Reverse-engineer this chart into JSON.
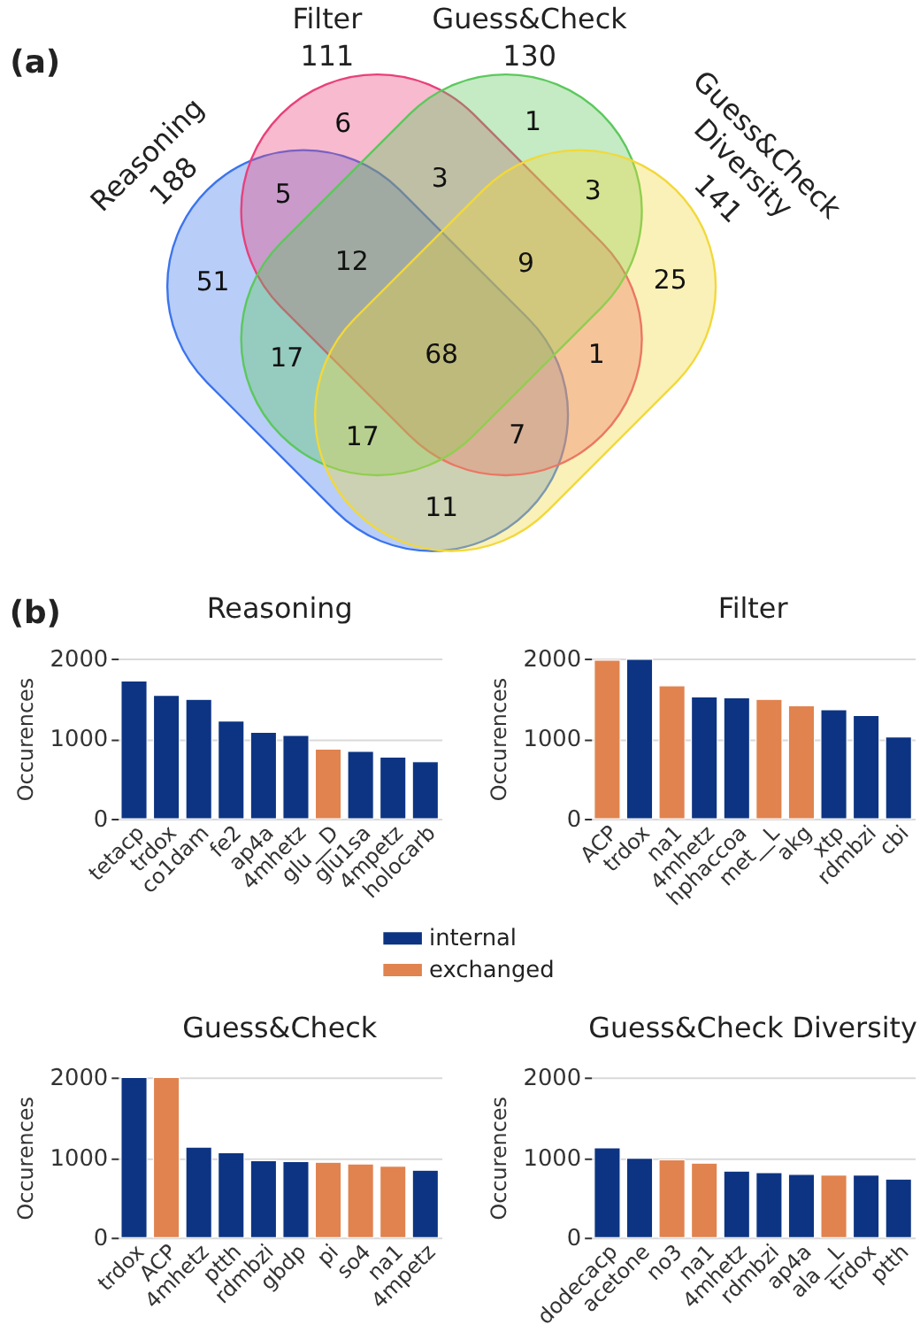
{
  "chart_data": [
    {
      "type": "other",
      "title": "(a)",
      "categories": [
        "Reasoning",
        "Filter",
        "Guess&Check",
        "Guess&Check Diversity"
      ],
      "values": [
        188,
        111,
        130,
        141
      ],
      "data_labels": true,
      "colors": [
        "#3b74ec",
        "#e8407a",
        "#5cc85c",
        "#f2d83a"
      ],
      "annotations": [
        "51",
        "6",
        "1",
        "25",
        "5",
        "3",
        "3",
        "17",
        "1",
        "11",
        "12",
        "9",
        "17",
        "7",
        "68"
      ]
    },
    {
      "type": "bar",
      "title": "Reasoning",
      "ylabel": "Occurences",
      "annotations": [
        "(b)"
      ],
      "categories": [
        "tetacp",
        "trdox",
        "co1dam",
        "fe2",
        "ap4a",
        "4mhetz",
        "glu__D",
        "glu1sa",
        "4mpetz",
        "holocarb"
      ],
      "series": [
        {
          "name": "internal",
          "color": "#0c3482",
          "values": [
            1720,
            1540,
            1490,
            1220,
            1080,
            1040,
            null,
            840,
            770,
            710
          ]
        },
        {
          "name": "exchanged",
          "color": "#e0834f",
          "values": [
            null,
            null,
            null,
            null,
            null,
            null,
            870,
            null,
            null,
            null
          ]
        }
      ],
      "stacked": true,
      "ylim": [
        0,
        2000
      ],
      "yticks": [
        0,
        1000,
        2000
      ],
      "grid": "y",
      "legend": "bottom right"
    },
    {
      "type": "bar",
      "title": "Filter",
      "ylabel": "Occurences",
      "categories": [
        "ACP",
        "trdox",
        "na1",
        "4mhetz",
        "hphaccoa",
        "met__L",
        "akg",
        "xtp",
        "rdmbzi",
        "cbi"
      ],
      "series": [
        {
          "color": "#0c3482",
          "values": [
            null,
            1990,
            null,
            1520,
            1510,
            null,
            null,
            1360,
            1290,
            1020
          ]
        },
        {
          "color": "#e0834f",
          "values": [
            1980,
            null,
            1660,
            null,
            null,
            1490,
            1410,
            null,
            null,
            null
          ]
        }
      ],
      "stacked": true,
      "ylim": [
        0,
        2000
      ],
      "yticks": [
        0,
        1000,
        2000
      ],
      "grid": "y"
    },
    {
      "type": "bar",
      "title": "Guess&Check",
      "ylabel": "Occurences",
      "categories": [
        "trdox",
        "ACP",
        "4mhetz",
        "ptth",
        "rdmbzi",
        "gbdp",
        "pi",
        "so4",
        "na1",
        "4mpetz"
      ],
      "series": [
        {
          "color": "#0c3482",
          "values": [
            2000,
            null,
            1130,
            1060,
            960,
            950,
            null,
            null,
            null,
            840
          ]
        },
        {
          "color": "#e0834f",
          "values": [
            null,
            2000,
            null,
            null,
            null,
            null,
            940,
            920,
            890,
            null
          ]
        }
      ],
      "stacked": true,
      "ylim": [
        0,
        2000
      ],
      "yticks": [
        0,
        1000,
        2000
      ],
      "grid": "y"
    },
    {
      "type": "bar",
      "title": "Guess&Check Diversity",
      "ylabel": "Occurences",
      "categories": [
        "dodecacp",
        "acetone",
        "no3",
        "na1",
        "4mhetz",
        "rdmbzi",
        "ap4a",
        "ala__L",
        "trdox",
        "ptth"
      ],
      "series": [
        {
          "color": "#0c3482",
          "values": [
            1120,
            990,
            null,
            null,
            830,
            810,
            790,
            null,
            780,
            730
          ]
        },
        {
          "color": "#e0834f",
          "values": [
            null,
            null,
            970,
            930,
            null,
            null,
            null,
            780,
            null,
            null
          ]
        }
      ],
      "stacked": true,
      "ylim": [
        0,
        2000
      ],
      "yticks": [
        0,
        1000,
        2000
      ],
      "grid": "y"
    }
  ]
}
